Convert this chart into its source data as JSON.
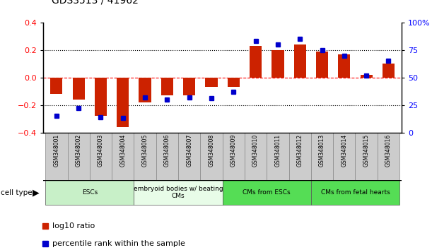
{
  "title": "GDS3513 / 41962",
  "samples": [
    "GSM348001",
    "GSM348002",
    "GSM348003",
    "GSM348004",
    "GSM348005",
    "GSM348006",
    "GSM348007",
    "GSM348008",
    "GSM348009",
    "GSM348010",
    "GSM348011",
    "GSM348012",
    "GSM348013",
    "GSM348014",
    "GSM348015",
    "GSM348016"
  ],
  "log10_ratio": [
    -0.12,
    -0.16,
    -0.28,
    -0.36,
    -0.18,
    -0.13,
    -0.13,
    -0.07,
    -0.07,
    0.23,
    0.2,
    0.24,
    0.19,
    0.17,
    0.02,
    0.1
  ],
  "percentile_rank": [
    15,
    22,
    14,
    13,
    32,
    30,
    32,
    31,
    37,
    83,
    80,
    85,
    75,
    70,
    52,
    65
  ],
  "cell_type_groups": [
    {
      "label": "ESCs",
      "start": 0,
      "end": 3,
      "color": "#c8f0c8"
    },
    {
      "label": "embryoid bodies w/ beating\nCMs",
      "start": 4,
      "end": 7,
      "color": "#e8fce8"
    },
    {
      "label": "CMs from ESCs",
      "start": 8,
      "end": 11,
      "color": "#55dd55"
    },
    {
      "label": "CMs from fetal hearts",
      "start": 12,
      "end": 15,
      "color": "#55dd55"
    }
  ],
  "bar_color_red": "#cc2200",
  "bar_color_blue": "#0000cc",
  "ylim_left": [
    -0.4,
    0.4
  ],
  "ylim_right": [
    0,
    100
  ],
  "yticks_left": [
    -0.4,
    -0.2,
    0.0,
    0.2,
    0.4
  ],
  "yticks_right": [
    0,
    25,
    50,
    75,
    100
  ],
  "ytick_labels_right": [
    "0",
    "25",
    "50",
    "75",
    "100%"
  ],
  "legend_red_label": "log10 ratio",
  "legend_blue_label": "percentile rank within the sample",
  "cell_type_label": "cell type",
  "bar_width": 0.55,
  "blue_marker_size": 5,
  "fig_width": 6.11,
  "fig_height": 3.54,
  "dpi": 100
}
